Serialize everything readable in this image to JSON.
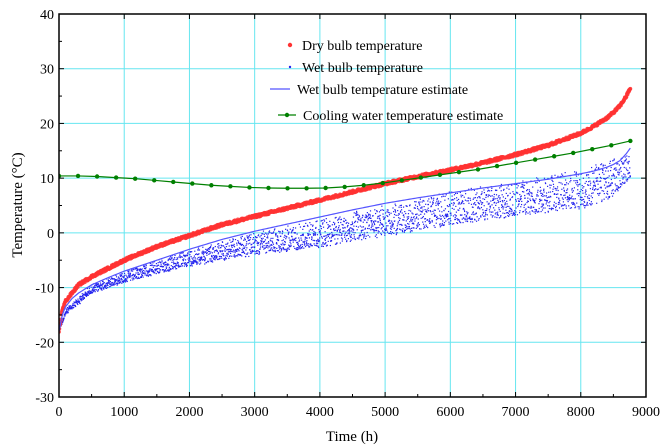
{
  "chart_data": {
    "type": "scatter",
    "xlabel": "Time  (h)",
    "ylabel": "Temperature (°C)",
    "xlim": [
      0,
      9000
    ],
    "ylim": [
      -30,
      40
    ],
    "x_ticks": [
      "0",
      "1000",
      "2000",
      "3000",
      "4000",
      "5000",
      "6000",
      "7000",
      "8000",
      "9000"
    ],
    "y_ticks": [
      "40",
      "30",
      "20",
      "10",
      "0",
      "-10",
      "-20",
      "-30"
    ],
    "grid": true,
    "legend_position": "top-center",
    "colors": {
      "dry_bulb": "#ff3333",
      "wet_bulb": "#2222ee",
      "wet_bulb_estimate": "#5555ff",
      "cooling_water": "#008000",
      "grid": "#66e6f0",
      "axes": "#000000"
    },
    "series": [
      {
        "name": "Dry bulb temperature",
        "style": "scatter",
        "n_points": 8760,
        "x": [
          0,
          50,
          100,
          200,
          300,
          500,
          750,
          1000,
          1500,
          2000,
          2500,
          3000,
          3500,
          4000,
          4500,
          5000,
          5500,
          6000,
          6500,
          7000,
          7500,
          8000,
          8200,
          8400,
          8500,
          8600,
          8700,
          8760
        ],
        "y": [
          -18,
          -14,
          -12.5,
          -11,
          -9.5,
          -8,
          -6.5,
          -5,
          -2.5,
          -0.5,
          1.5,
          3,
          4.5,
          6,
          7.5,
          9,
          10.3,
          11.5,
          12.8,
          14.3,
          16,
          18.2,
          19.5,
          21,
          22,
          23.2,
          25,
          26.5
        ]
      },
      {
        "name": "Wet bulb temperature",
        "style": "scatter",
        "n_points": 8760,
        "x": [
          0,
          100,
          500,
          1000,
          2000,
          3000,
          4000,
          5000,
          6000,
          7000,
          8000,
          8500,
          8760
        ],
        "y": [
          -18,
          -14,
          -9.5,
          -7,
          -3,
          0,
          2.5,
          5,
          7.5,
          9.5,
          11.5,
          13.5,
          16
        ],
        "spread_below": [
          0,
          1,
          1.5,
          2,
          3,
          4,
          5,
          5.5,
          6,
          6.5,
          7,
          7,
          6
        ]
      },
      {
        "name": "Wet bulb temperature estimate",
        "style": "line",
        "x": [
          0,
          50,
          100,
          200,
          300,
          500,
          750,
          1000,
          1500,
          2000,
          2500,
          3000,
          3500,
          4000,
          4500,
          5000,
          5500,
          6000,
          6500,
          7000,
          7500,
          8000,
          8200,
          8400,
          8500,
          8600,
          8700,
          8760
        ],
        "y": [
          -18,
          -15,
          -13.5,
          -12,
          -11,
          -9.5,
          -8.2,
          -7,
          -5,
          -3,
          -1.2,
          0.3,
          1.6,
          2.9,
          4.2,
          5.4,
          6.4,
          7.3,
          8.2,
          9,
          9.8,
          10.8,
          11.3,
          12,
          12.5,
          13.2,
          14.5,
          15.5
        ]
      },
      {
        "name": "Cooling water temperature estimate",
        "style": "line-marker",
        "x": [
          0,
          292,
          584,
          876,
          1168,
          1460,
          1752,
          2044,
          2336,
          2628,
          2920,
          3212,
          3504,
          3796,
          4088,
          4380,
          4672,
          4964,
          5256,
          5548,
          5840,
          6132,
          6424,
          6716,
          7008,
          7300,
          7592,
          7884,
          8176,
          8468,
          8760
        ],
        "y": [
          10.4,
          10.4,
          10.3,
          10.1,
          9.9,
          9.6,
          9.3,
          9.0,
          8.7,
          8.5,
          8.3,
          8.2,
          8.15,
          8.15,
          8.2,
          8.4,
          8.7,
          9.1,
          9.6,
          10.1,
          10.6,
          11.1,
          11.6,
          12.2,
          12.8,
          13.4,
          14.0,
          14.6,
          15.3,
          16.0,
          16.8
        ]
      }
    ]
  }
}
